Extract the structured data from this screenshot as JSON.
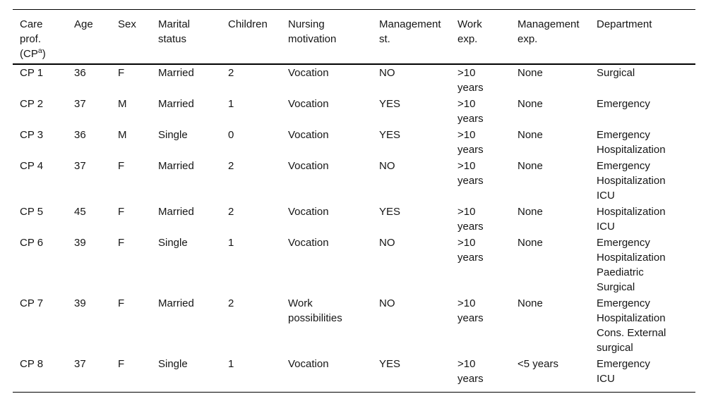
{
  "table": {
    "text_color": "#161616",
    "rule_color": "#000000",
    "background_color": "#ffffff",
    "columns": [
      {
        "id": "care-prof",
        "key": "cp",
        "lines": [
          "Care",
          "prof."
        ],
        "paren": {
          "pre": "(CP",
          "sup": "a",
          "post": ")"
        }
      },
      {
        "id": "age",
        "key": "age",
        "lines": [
          "Age"
        ]
      },
      {
        "id": "sex",
        "key": "sex",
        "lines": [
          "Sex"
        ]
      },
      {
        "id": "marital-status",
        "key": "marital_status",
        "lines": [
          "Marital",
          "status"
        ]
      },
      {
        "id": "children",
        "key": "children",
        "lines": [
          "Children"
        ]
      },
      {
        "id": "nursing-motivation",
        "key": "nursing_motivation",
        "lines": [
          "Nursing",
          "motivation"
        ]
      },
      {
        "id": "management-st",
        "key": "management_st",
        "lines": [
          "Management",
          "st."
        ]
      },
      {
        "id": "work-exp",
        "key": "work_exp",
        "lines": [
          "Work",
          "exp."
        ]
      },
      {
        "id": "management-exp",
        "key": "management_exp",
        "lines": [
          "Management",
          "exp."
        ]
      },
      {
        "id": "department",
        "key": "department",
        "lines": [
          "Department"
        ]
      }
    ],
    "rows": [
      {
        "cp": "CP 1",
        "age": "36",
        "sex": "F",
        "marital_status": "Married",
        "children": "2",
        "nursing_motivation": [
          "Vocation"
        ],
        "management_st": "NO",
        "work_exp": [
          ">10",
          "years"
        ],
        "management_exp": [
          "None"
        ],
        "department": [
          "Surgical"
        ]
      },
      {
        "cp": "CP 2",
        "age": "37",
        "sex": "M",
        "marital_status": "Married",
        "children": "1",
        "nursing_motivation": [
          "Vocation"
        ],
        "management_st": "YES",
        "work_exp": [
          ">10",
          "years"
        ],
        "management_exp": [
          "None"
        ],
        "department": [
          "Emergency"
        ]
      },
      {
        "cp": "CP 3",
        "age": "36",
        "sex": "M",
        "marital_status": "Single",
        "children": "0",
        "nursing_motivation": [
          "Vocation"
        ],
        "management_st": "YES",
        "work_exp": [
          ">10",
          "years"
        ],
        "management_exp": [
          "None"
        ],
        "department": [
          "Emergency",
          "Hospitalization"
        ]
      },
      {
        "cp": "CP 4",
        "age": "37",
        "sex": "F",
        "marital_status": "Married",
        "children": "2",
        "nursing_motivation": [
          "Vocation"
        ],
        "management_st": "NO",
        "work_exp": [
          ">10",
          "years"
        ],
        "management_exp": [
          "None"
        ],
        "department": [
          "Emergency",
          "Hospitalization",
          "ICU"
        ]
      },
      {
        "cp": "CP 5",
        "age": "45",
        "sex": "F",
        "marital_status": "Married",
        "children": "2",
        "nursing_motivation": [
          "Vocation"
        ],
        "management_st": "YES",
        "work_exp": [
          ">10",
          "years"
        ],
        "management_exp": [
          "None"
        ],
        "department": [
          "Hospitalization",
          "ICU"
        ]
      },
      {
        "cp": "CP 6",
        "age": "39",
        "sex": "F",
        "marital_status": "Single",
        "children": "1",
        "nursing_motivation": [
          "Vocation"
        ],
        "management_st": "NO",
        "work_exp": [
          ">10",
          "years"
        ],
        "management_exp": [
          "None"
        ],
        "department": [
          "Emergency",
          "Hospitalization",
          "Paediatric",
          "Surgical"
        ]
      },
      {
        "cp": "CP 7",
        "age": "39",
        "sex": "F",
        "marital_status": "Married",
        "children": "2",
        "nursing_motivation": [
          "Work",
          "possibilities"
        ],
        "management_st": "NO",
        "work_exp": [
          ">10",
          "years"
        ],
        "management_exp": [
          "None"
        ],
        "department": [
          "Emergency",
          "Hospitalization",
          "Cons. External",
          "surgical"
        ]
      },
      {
        "cp": "CP 8",
        "age": "37",
        "sex": "F",
        "marital_status": "Single",
        "children": "1",
        "nursing_motivation": [
          "Vocation"
        ],
        "management_st": "YES",
        "work_exp": [
          ">10",
          "years"
        ],
        "management_exp": [
          "<5 years"
        ],
        "department": [
          "Emergency",
          "ICU"
        ]
      }
    ]
  }
}
